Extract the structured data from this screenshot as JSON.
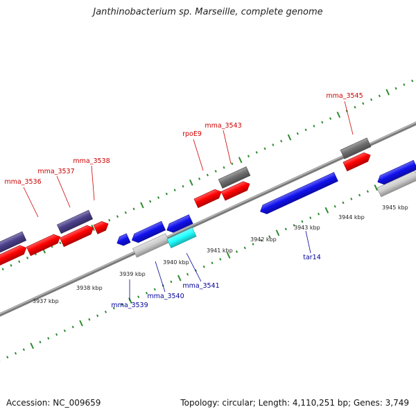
{
  "title": "Janthinobacterium sp. Marseille, complete genome",
  "footer": {
    "accession": "Accession: NC_009659",
    "topology": "Topology: circular; Length: 4,110,251 bp; Genes: 3,749"
  },
  "colors": {
    "backbone": "#8c8c8c",
    "tick_dots": "#2e8b2e",
    "forward_label": "#cc0000",
    "reverse_label": "#000099",
    "gene_red": "#ff0000",
    "gene_blue": "#1010ee",
    "gene_navy": "#4a3f8a",
    "gene_gray": "#6e6e6e",
    "gene_lightgray": "#cfcfcf",
    "gene_cyan": "#22ffff"
  },
  "scale_labels": [
    "3937 kbp",
    "3938 kbp",
    "3939 kbp",
    "3940 kbp",
    "3941 kbp",
    "3942 kbp",
    "3943 kbp",
    "3944 kbp",
    "3945 kbp"
  ],
  "forward_gene_labels": [
    "mma_3536",
    "mma_3537",
    "mma_3538",
    "rpoE9",
    "mma_3543",
    "mma_3545"
  ],
  "reverse_gene_labels": [
    "mma_3539",
    "mma_3540",
    "mma_3541",
    "tar14"
  ]
}
